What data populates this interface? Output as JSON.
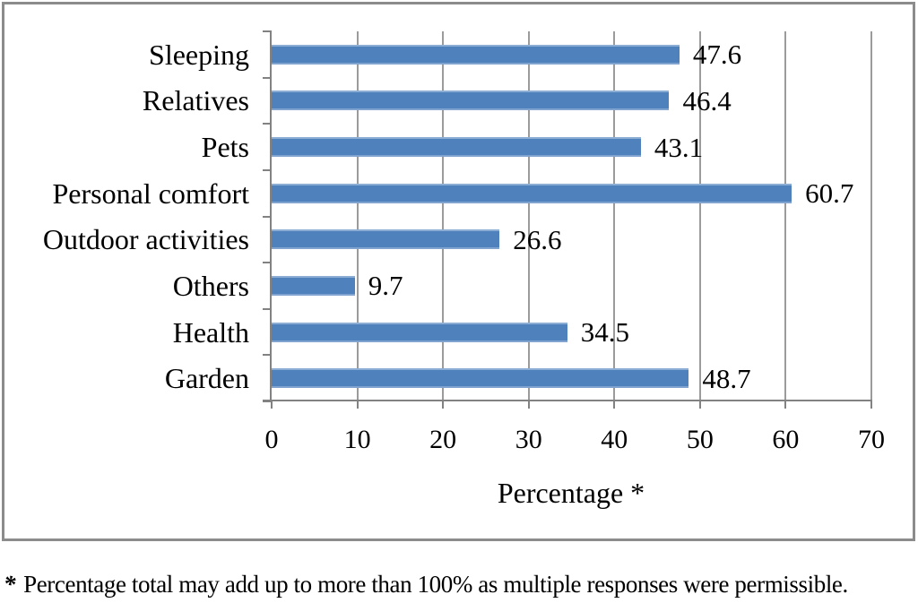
{
  "chart_data": {
    "type": "bar",
    "orientation": "horizontal",
    "categories": [
      "Sleeping",
      "Relatives",
      "Pets",
      "Personal comfort",
      "Outdoor activities",
      "Others",
      "Health",
      "Garden"
    ],
    "values": [
      47.6,
      46.4,
      43.1,
      60.7,
      26.6,
      9.7,
      34.5,
      48.7
    ],
    "value_labels": [
      "47.6",
      "46.4",
      "43.1",
      "60.7",
      "26.6",
      "9.7",
      "34.5",
      "48.7"
    ],
    "title": "",
    "xlabel": "Percentage *",
    "ylabel": "",
    "xlim": [
      0,
      70
    ],
    "x_ticks": [
      0,
      10,
      20,
      30,
      40,
      50,
      60,
      70
    ],
    "grid": "vertical-gridlines-on",
    "legend": "none"
  },
  "footnote": {
    "marker": "*",
    "text": "Percentage total may add up to more than 100% as multiple responses were permissible."
  },
  "colors": {
    "bar": "#4F81BD",
    "gridline": "#9B9B9B",
    "axis": "#828282",
    "frame_border": "#8C8C8C",
    "text": "#000000"
  }
}
